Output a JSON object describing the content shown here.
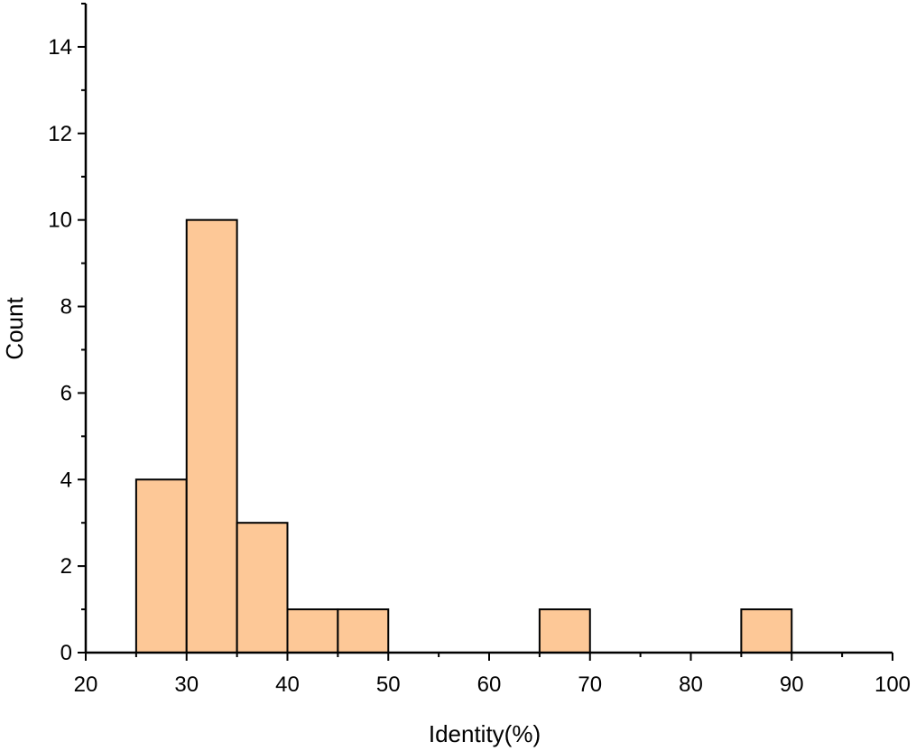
{
  "chart_data": {
    "type": "bar",
    "subtype": "histogram",
    "bins": [
      {
        "start": 25,
        "end": 30,
        "count": 4
      },
      {
        "start": 30,
        "end": 35,
        "count": 10
      },
      {
        "start": 35,
        "end": 40,
        "count": 3
      },
      {
        "start": 40,
        "end": 45,
        "count": 1
      },
      {
        "start": 45,
        "end": 50,
        "count": 1
      },
      {
        "start": 50,
        "end": 55,
        "count": 0
      },
      {
        "start": 55,
        "end": 60,
        "count": 0
      },
      {
        "start": 60,
        "end": 65,
        "count": 0
      },
      {
        "start": 65,
        "end": 70,
        "count": 1
      },
      {
        "start": 70,
        "end": 75,
        "count": 0
      },
      {
        "start": 75,
        "end": 80,
        "count": 0
      },
      {
        "start": 80,
        "end": 85,
        "count": 0
      },
      {
        "start": 85,
        "end": 90,
        "count": 1
      }
    ],
    "xlabel": "Identity(%)",
    "ylabel": "Count",
    "xlim": [
      20,
      100
    ],
    "ylim": [
      0,
      15
    ],
    "x_ticks": [
      20,
      30,
      40,
      50,
      60,
      70,
      80,
      90,
      100
    ],
    "y_ticks": [
      0,
      2,
      4,
      6,
      8,
      10,
      12,
      14
    ],
    "grid": false,
    "legend": "none",
    "colors": {
      "bar_fill": "#FDC897",
      "bar_stroke": "#000000",
      "axis": "#000000"
    }
  }
}
